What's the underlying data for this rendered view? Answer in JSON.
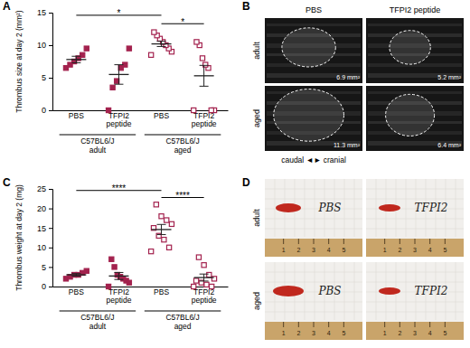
{
  "chart_data": [
    {
      "type": "dot",
      "panel": "A",
      "y_label": "Thrombus size at day 2 (mm²)",
      "categories": [
        "PBS",
        "TFPI2 peptide",
        "PBS",
        "TFPI2 peptide"
      ],
      "groups": [
        {
          "labels": [
            "C57BL6/J",
            "adult"
          ],
          "categories": [
            0,
            1
          ]
        },
        {
          "labels": [
            "C57BL6/J",
            "aged"
          ],
          "categories": [
            2,
            3
          ]
        }
      ],
      "markers": [
        "square",
        "square",
        "square-open",
        "square-open"
      ],
      "color": "#a3224e",
      "points": [
        [
          6.5,
          7,
          7.5,
          8,
          8.5,
          9.5
        ],
        [
          0,
          3.5,
          4.5,
          6.5,
          7,
          9.5
        ],
        [
          8.5,
          9,
          9.5,
          10,
          10.5,
          11,
          11.5,
          12
        ],
        [
          0,
          0,
          0,
          6.5,
          7,
          8,
          10,
          10.5
        ]
      ],
      "means": [
        7.8,
        5.5,
        10.2,
        5.3
      ],
      "errors": [
        0.5,
        1.5,
        0.4,
        1.6
      ],
      "ylim": [
        0,
        15
      ],
      "yticks": [
        0,
        5,
        10,
        15
      ],
      "significance": [
        {
          "from": 0,
          "to": 2,
          "y": 14.6,
          "label": "*"
        },
        {
          "from": 2,
          "to": 3,
          "y": 13.3,
          "label": "*"
        }
      ]
    },
    {
      "type": "dot",
      "panel": "C",
      "y_label": "Thrombus weight at day 2 (mg)",
      "categories": [
        "PBS",
        "TFPI2 peptide",
        "PBS",
        "TFPI2 peptide"
      ],
      "groups": [
        {
          "labels": [
            "C57BL6/J",
            "adult"
          ],
          "categories": [
            0,
            1
          ]
        },
        {
          "labels": [
            "C57BL6/J",
            "aged"
          ],
          "categories": [
            2,
            3
          ]
        }
      ],
      "markers": [
        "square",
        "square",
        "square-open",
        "square-open"
      ],
      "color": "#a3224e",
      "points": [
        [
          2,
          2.5,
          3,
          3,
          3.5,
          4
        ],
        [
          0,
          1,
          1.5,
          2,
          2.5,
          3,
          5,
          7
        ],
        [
          9,
          10,
          12,
          13,
          15,
          16,
          17,
          18,
          21
        ],
        [
          0,
          0,
          0.5,
          1,
          1.5,
          2,
          3,
          5.5,
          7.5
        ]
      ],
      "means": [
        3,
        2.7,
        14.6,
        2.3
      ],
      "errors": [
        0.3,
        0.9,
        1.3,
        0.9
      ],
      "ylim": [
        0,
        25
      ],
      "yticks": [
        0,
        5,
        10,
        15,
        20,
        25
      ],
      "significance": [
        {
          "from": 0,
          "to": 2,
          "y": 24.6,
          "label": "****"
        },
        {
          "from": 2,
          "to": 3,
          "y": 22.8,
          "label": "****"
        }
      ]
    }
  ],
  "images": {
    "B": {
      "panel": "B",
      "columns": [
        "PBS",
        "TFPI2 peptide"
      ],
      "rows": [
        "adult",
        "aged"
      ],
      "areas": [
        [
          "6.9 mm²",
          "5.2 mm²"
        ],
        [
          "11.3 mm²",
          "6.4 mm²"
        ]
      ],
      "caption": "caudal ◄► cranial"
    },
    "D": {
      "panel": "D",
      "rows": [
        "adult",
        "aged"
      ],
      "labels": [
        [
          "PBS",
          "TFPI2"
        ],
        [
          "PBS",
          "TFPI2"
        ]
      ],
      "ruler_labels": [
        1,
        2,
        3,
        4,
        5
      ]
    }
  }
}
